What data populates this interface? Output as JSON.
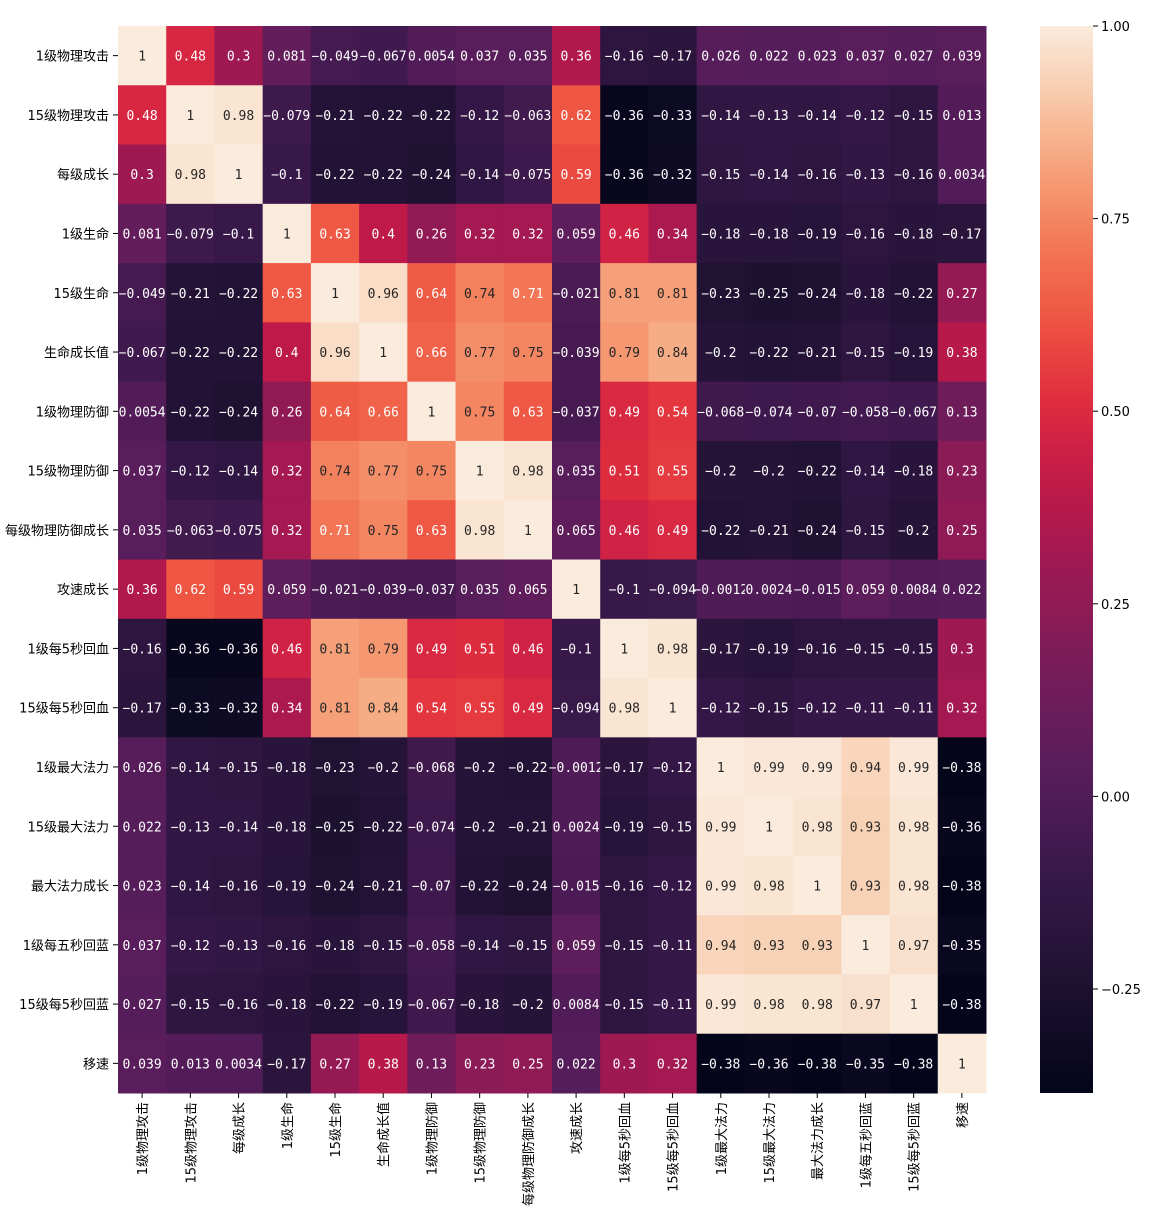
{
  "chart_data": {
    "type": "heatmap",
    "title": "",
    "xlabel": "",
    "ylabel": "",
    "colormap": "rocket",
    "color_range": [
      -0.385,
      1.0
    ],
    "colorbar": {
      "placement": "right",
      "ticks": [
        1.0,
        0.75,
        0.5,
        0.25,
        0.0,
        -0.25
      ],
      "tick_labels": [
        "1.00",
        "0.75",
        "0.50",
        "0.25",
        "0.00",
        "−0.25"
      ]
    },
    "row_labels": [
      "1级物理攻击",
      "15级物理攻击",
      "每级成长",
      "1级生命",
      "15级生命",
      "生命成长值",
      "1级物理防御",
      "15级物理防御",
      "每级物理防御成长",
      "攻速成长",
      "1级每5秒回血",
      "15级每5秒回血",
      "1级最大法力",
      "15级最大法力",
      "最大法力成长",
      "1级每五秒回蓝",
      "15级每5秒回蓝",
      "移速"
    ],
    "col_labels": [
      "1级物理攻击",
      "15级物理攻击",
      "每级成长",
      "1级生命",
      "15级生命",
      "生命成长值",
      "1级物理防御",
      "15级物理防御",
      "每级物理防御成长",
      "攻速成长",
      "1级每5秒回血",
      "15级每5秒回血",
      "1级最大法力",
      "15级最大法力",
      "最大法力成长",
      "1级每五秒回蓝",
      "15级每5秒回蓝",
      "移速"
    ],
    "values": [
      [
        1,
        0.48,
        0.3,
        0.081,
        -0.049,
        -0.067,
        0.0054,
        0.037,
        0.035,
        0.36,
        -0.16,
        -0.17,
        0.026,
        0.022,
        0.023,
        0.037,
        0.027,
        0.039
      ],
      [
        0.48,
        1,
        0.98,
        -0.079,
        -0.21,
        -0.22,
        -0.22,
        -0.12,
        -0.063,
        0.62,
        -0.36,
        -0.33,
        -0.14,
        -0.13,
        -0.14,
        -0.12,
        -0.15,
        0.013
      ],
      [
        0.3,
        0.98,
        1,
        -0.1,
        -0.22,
        -0.22,
        -0.24,
        -0.14,
        -0.075,
        0.59,
        -0.36,
        -0.32,
        -0.15,
        -0.14,
        -0.16,
        -0.13,
        -0.16,
        0.0034
      ],
      [
        0.081,
        -0.079,
        -0.1,
        1,
        0.63,
        0.4,
        0.26,
        0.32,
        0.32,
        0.059,
        0.46,
        0.34,
        -0.18,
        -0.18,
        -0.19,
        -0.16,
        -0.18,
        -0.17
      ],
      [
        -0.049,
        -0.21,
        -0.22,
        0.63,
        1,
        0.96,
        0.64,
        0.74,
        0.71,
        -0.021,
        0.81,
        0.81,
        -0.23,
        -0.25,
        -0.24,
        -0.18,
        -0.22,
        0.27
      ],
      [
        -0.067,
        -0.22,
        -0.22,
        0.4,
        0.96,
        1,
        0.66,
        0.77,
        0.75,
        -0.039,
        0.79,
        0.84,
        -0.2,
        -0.22,
        -0.21,
        -0.15,
        -0.19,
        0.38
      ],
      [
        0.0054,
        -0.22,
        -0.24,
        0.26,
        0.64,
        0.66,
        1,
        0.75,
        0.63,
        -0.037,
        0.49,
        0.54,
        -0.068,
        -0.074,
        -0.07,
        -0.058,
        -0.067,
        0.13
      ],
      [
        0.037,
        -0.12,
        -0.14,
        0.32,
        0.74,
        0.77,
        0.75,
        1,
        0.98,
        0.035,
        0.51,
        0.55,
        -0.2,
        -0.2,
        -0.22,
        -0.14,
        -0.18,
        0.23
      ],
      [
        0.035,
        -0.063,
        -0.075,
        0.32,
        0.71,
        0.75,
        0.63,
        0.98,
        1,
        0.065,
        0.46,
        0.49,
        -0.22,
        -0.21,
        -0.24,
        -0.15,
        -0.2,
        0.25
      ],
      [
        0.36,
        0.62,
        0.59,
        0.059,
        -0.021,
        -0.039,
        -0.037,
        0.035,
        0.065,
        1,
        -0.1,
        -0.094,
        -0.0012,
        0.0024,
        -0.015,
        0.059,
        0.0084,
        0.022
      ],
      [
        -0.16,
        -0.36,
        -0.36,
        0.46,
        0.81,
        0.79,
        0.49,
        0.51,
        0.46,
        -0.1,
        1,
        0.98,
        -0.17,
        -0.19,
        -0.16,
        -0.15,
        -0.15,
        0.3
      ],
      [
        -0.17,
        -0.33,
        -0.32,
        0.34,
        0.81,
        0.84,
        0.54,
        0.55,
        0.49,
        -0.094,
        0.98,
        1,
        -0.12,
        -0.15,
        -0.12,
        -0.11,
        -0.11,
        0.32
      ],
      [
        0.026,
        -0.14,
        -0.15,
        -0.18,
        -0.23,
        -0.2,
        -0.068,
        -0.2,
        -0.22,
        -0.0012,
        -0.17,
        -0.12,
        1,
        0.99,
        0.99,
        0.94,
        0.99,
        -0.38
      ],
      [
        0.022,
        -0.13,
        -0.14,
        -0.18,
        -0.25,
        -0.22,
        -0.074,
        -0.2,
        -0.21,
        0.0024,
        -0.19,
        -0.15,
        0.99,
        1,
        0.98,
        0.93,
        0.98,
        -0.36
      ],
      [
        0.023,
        -0.14,
        -0.16,
        -0.19,
        -0.24,
        -0.21,
        -0.07,
        -0.22,
        -0.24,
        -0.015,
        -0.16,
        -0.12,
        0.99,
        0.98,
        1,
        0.93,
        0.98,
        -0.38
      ],
      [
        0.037,
        -0.12,
        -0.13,
        -0.16,
        -0.18,
        -0.15,
        -0.058,
        -0.14,
        -0.15,
        0.059,
        -0.15,
        -0.11,
        0.94,
        0.93,
        0.93,
        1,
        0.97,
        -0.35
      ],
      [
        0.027,
        -0.15,
        -0.16,
        -0.18,
        -0.22,
        -0.19,
        -0.067,
        -0.18,
        -0.2,
        0.0084,
        -0.15,
        -0.11,
        0.99,
        0.98,
        0.98,
        0.97,
        1,
        -0.38
      ],
      [
        0.039,
        0.013,
        0.0034,
        -0.17,
        0.27,
        0.38,
        0.13,
        0.23,
        0.25,
        0.022,
        0.3,
        0.32,
        -0.38,
        -0.36,
        -0.38,
        -0.35,
        -0.38,
        1
      ]
    ],
    "annotations": true
  }
}
